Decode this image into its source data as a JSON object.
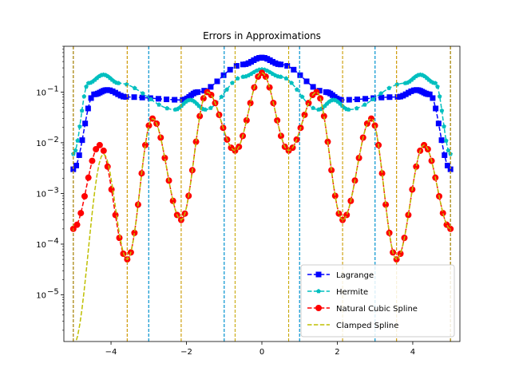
{
  "chart_data": {
    "type": "line",
    "title": "Errors in Approximations",
    "xlabel": "",
    "ylabel": "",
    "yscale": "log",
    "xlim": [
      -5.25,
      5.25
    ],
    "ylim": [
      1.2e-06,
      0.8
    ],
    "grid": false,
    "legend_position": "lower-right",
    "x_ticks": [
      {
        "value": -4,
        "label": "−4"
      },
      {
        "value": -2,
        "label": "−2"
      },
      {
        "value": 0,
        "label": "0"
      },
      {
        "value": 2,
        "label": "2"
      },
      {
        "value": 4,
        "label": "4"
      }
    ],
    "y_ticks": [
      {
        "value": 1e-05,
        "label": "10",
        "exp": "−5"
      },
      {
        "value": 0.0001,
        "label": "10",
        "exp": "−4"
      },
      {
        "value": 0.001,
        "label": "10",
        "exp": "−3"
      },
      {
        "value": 0.01,
        "label": "10",
        "exp": "−2"
      },
      {
        "value": 0.1,
        "label": "10",
        "exp": "−1"
      }
    ],
    "series": [
      {
        "name": "Lagrange",
        "color": "#0000ff",
        "marker": "square",
        "linestyle": "dashed",
        "nodes": [
          -5,
          -3,
          -1,
          1,
          3,
          5
        ],
        "points": [
          [
            -5,
            0.003
          ],
          [
            -4.45,
            0.09
          ],
          [
            -4.1,
            0.11
          ],
          [
            -3.6,
            0.08
          ],
          [
            -2.1,
            0.07
          ],
          [
            -1.7,
            0.1
          ],
          [
            -0.5,
            0.35
          ],
          [
            0,
            0.48
          ],
          [
            0.5,
            0.35
          ],
          [
            1.7,
            0.1
          ],
          [
            2.1,
            0.07
          ],
          [
            3.6,
            0.08
          ],
          [
            4.1,
            0.11
          ],
          [
            4.45,
            0.09
          ],
          [
            5,
            0.003
          ]
        ]
      },
      {
        "name": "Hermite",
        "color": "#00bfbf",
        "marker": "pentagon",
        "linestyle": "dashed",
        "nodes": [
          -5,
          -3,
          -1,
          1,
          3,
          5
        ],
        "points": [
          [
            -5,
            0.006
          ],
          [
            -4.6,
            0.15
          ],
          [
            -4.2,
            0.22
          ],
          [
            -3.8,
            0.15
          ],
          [
            -2.3,
            0.045
          ],
          [
            -1.9,
            0.07
          ],
          [
            -1.5,
            0.045
          ],
          [
            -0.5,
            0.2
          ],
          [
            0,
            0.28
          ],
          [
            0.5,
            0.2
          ],
          [
            1.5,
            0.045
          ],
          [
            1.9,
            0.07
          ],
          [
            2.3,
            0.045
          ],
          [
            3.8,
            0.15
          ],
          [
            4.2,
            0.22
          ],
          [
            4.6,
            0.15
          ],
          [
            5,
            0.006
          ]
        ]
      },
      {
        "name": "Natural Cubic Spline",
        "color": "#ff0000",
        "marker": "circle",
        "linestyle": "dashed",
        "nodes": [
          -5,
          -3.57,
          -2.14,
          -0.71,
          0.71,
          2.14,
          3.57,
          5
        ],
        "points": [
          [
            -5,
            0.0002
          ],
          [
            -4.3,
            0.009
          ],
          [
            -3.57,
            5e-05
          ],
          [
            -2.9,
            0.03
          ],
          [
            -2.14,
            0.0003
          ],
          [
            -1.45,
            0.1
          ],
          [
            -0.71,
            0.007
          ],
          [
            0,
            0.24
          ],
          [
            0.71,
            0.007
          ],
          [
            1.45,
            0.1
          ],
          [
            2.14,
            0.0003
          ],
          [
            2.9,
            0.03
          ],
          [
            3.57,
            5e-05
          ],
          [
            4.3,
            0.009
          ],
          [
            5,
            0.0002
          ]
        ]
      },
      {
        "name": "Clamped Spline",
        "color": "#bfbf00",
        "marker": "none",
        "linestyle": "dashed",
        "nodes": [
          -5,
          -3.57,
          -2.14,
          -0.71,
          0.71,
          2.14,
          3.57,
          5
        ],
        "points": [
          [
            -5,
            1e-06
          ],
          [
            -4.2,
            0.006
          ],
          [
            -3.57,
            5e-05
          ],
          [
            -2.9,
            0.03
          ],
          [
            -2.14,
            0.0003
          ],
          [
            -1.45,
            0.1
          ],
          [
            -0.71,
            0.007
          ],
          [
            0,
            0.24
          ],
          [
            0.71,
            0.007
          ],
          [
            1.45,
            0.1
          ],
          [
            2.14,
            0.0003
          ],
          [
            2.9,
            0.03
          ],
          [
            3.57,
            5e-05
          ],
          [
            4.3,
            0.009
          ],
          [
            5,
            0.0002
          ]
        ]
      }
    ]
  }
}
